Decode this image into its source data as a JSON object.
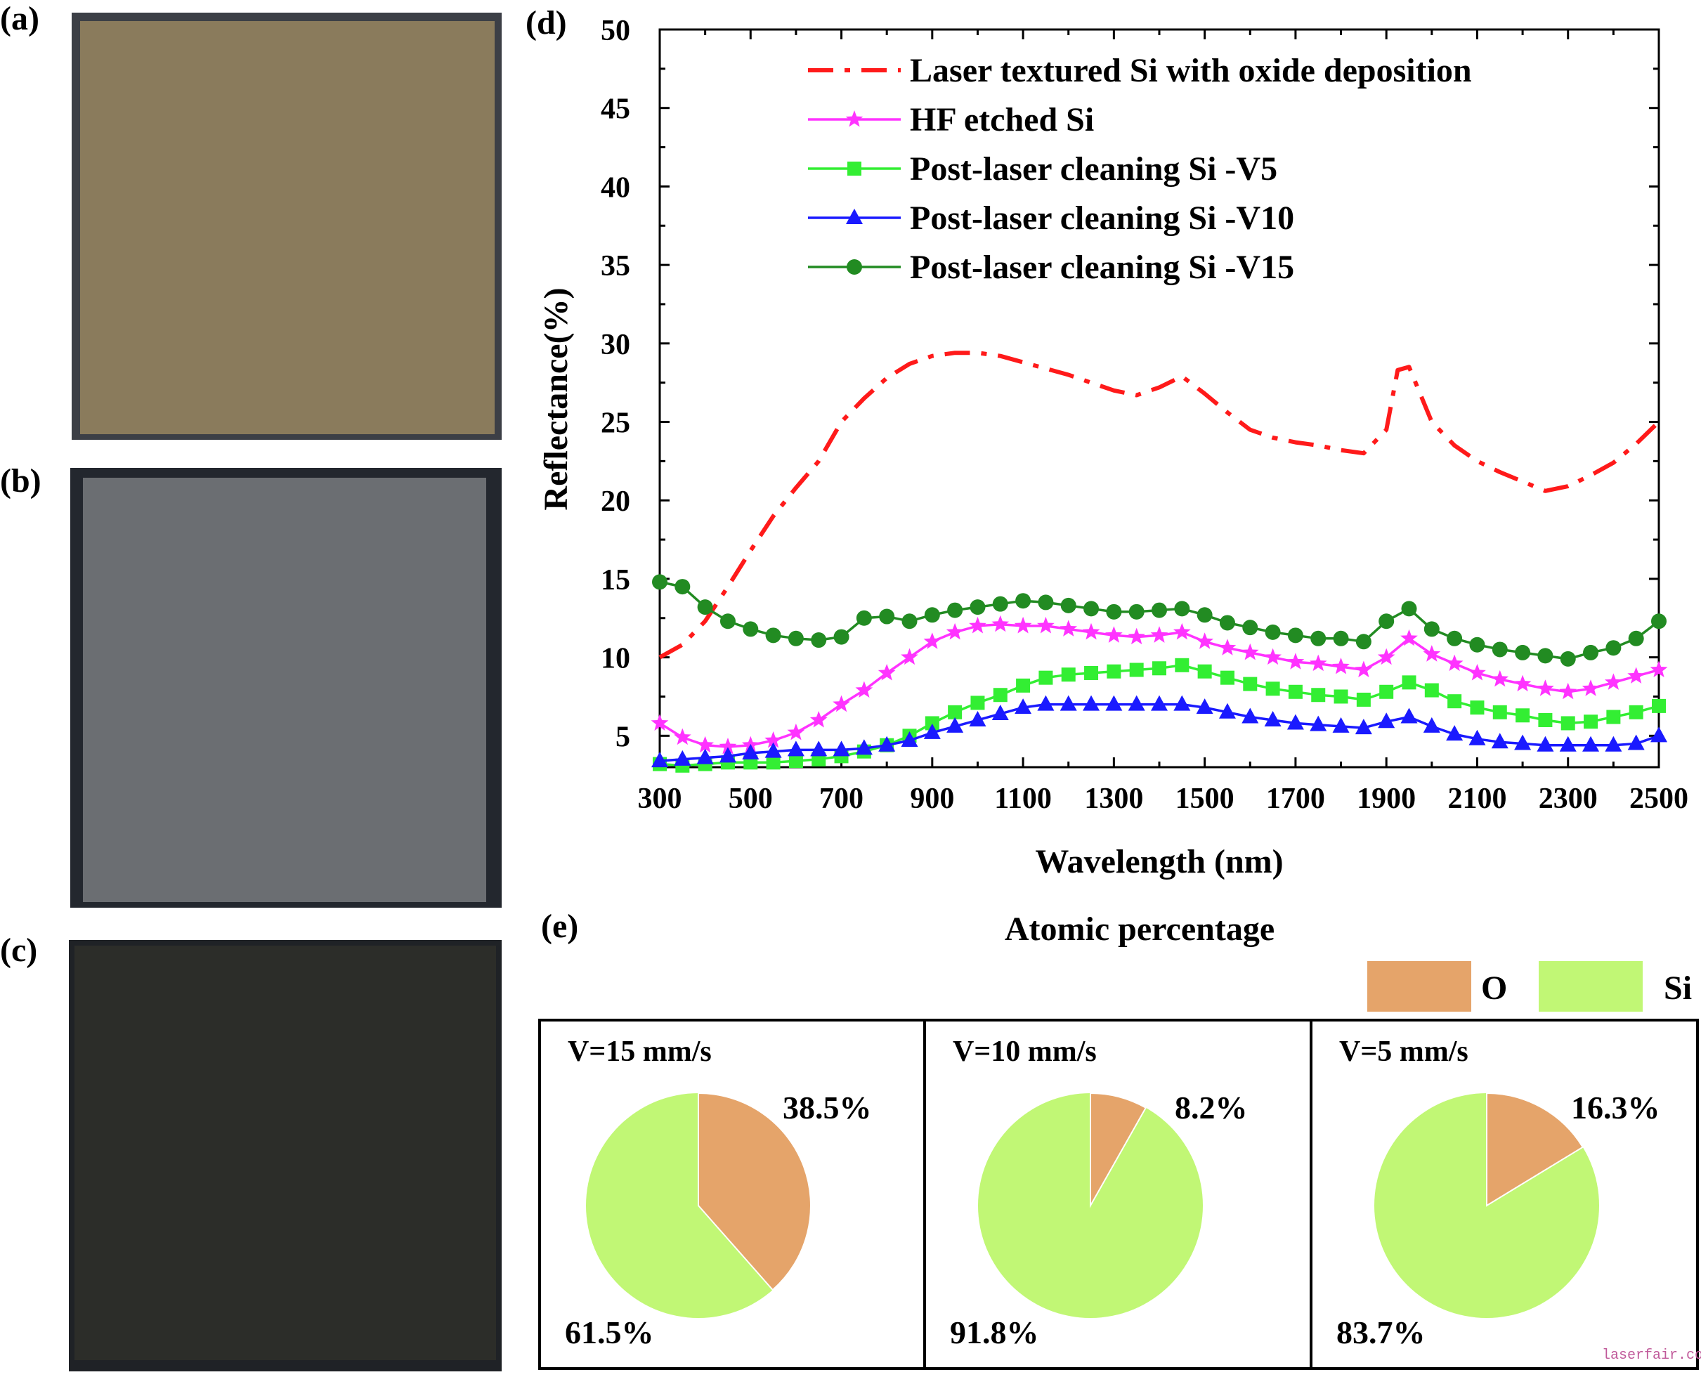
{
  "panels": {
    "a": "(a)",
    "b": "(b)",
    "c": "(c)",
    "d": "(d)",
    "e": "(e)"
  },
  "photo_colors": {
    "a": {
      "frame": "#3c3f46",
      "sample": "#8a7b5c"
    },
    "b": {
      "frame": "#23272e",
      "sample": "#6b6e72"
    },
    "c": {
      "frame": "#1f2226",
      "sample": "#2c2d29"
    }
  },
  "chart_data": [
    {
      "type": "line",
      "title": "",
      "xlabel": "Wavelength (nm)",
      "ylabel": "Reflectance(%)",
      "xlim": [
        300,
        2500
      ],
      "ylim": [
        3,
        50
      ],
      "xticks": [
        300,
        500,
        700,
        900,
        1100,
        1300,
        1500,
        1700,
        1900,
        2100,
        2300,
        2500
      ],
      "yticks": [
        5,
        10,
        15,
        20,
        25,
        30,
        35,
        40,
        45,
        50
      ],
      "legend_position": "top",
      "series": [
        {
          "name": "Laser textured Si with oxide deposition",
          "color": "#ff1a1a",
          "style": "dashdot",
          "marker": "none",
          "x": [
            300,
            350,
            400,
            450,
            500,
            550,
            600,
            650,
            700,
            750,
            800,
            850,
            900,
            950,
            1000,
            1050,
            1100,
            1150,
            1200,
            1250,
            1300,
            1350,
            1400,
            1450,
            1500,
            1550,
            1600,
            1650,
            1700,
            1750,
            1800,
            1850,
            1900,
            1925,
            1950,
            2000,
            2050,
            2100,
            2150,
            2200,
            2250,
            2300,
            2350,
            2400,
            2450,
            2500
          ],
          "y": [
            10.0,
            10.8,
            12.3,
            14.5,
            16.8,
            19.0,
            20.8,
            22.5,
            25.0,
            26.5,
            27.8,
            28.7,
            29.2,
            29.4,
            29.4,
            29.2,
            28.8,
            28.4,
            28.0,
            27.5,
            27.0,
            26.7,
            27.2,
            27.9,
            26.8,
            25.6,
            24.5,
            24.0,
            23.7,
            23.5,
            23.2,
            23.0,
            24.5,
            28.3,
            28.5,
            25.0,
            23.5,
            22.5,
            21.8,
            21.2,
            20.6,
            20.9,
            21.6,
            22.4,
            23.6,
            25.0
          ]
        },
        {
          "name": "HF etched Si",
          "color": "#ff33ff",
          "style": "solid",
          "marker": "star",
          "x": [
            300,
            350,
            400,
            450,
            500,
            550,
            600,
            650,
            700,
            750,
            800,
            850,
            900,
            950,
            1000,
            1050,
            1100,
            1150,
            1200,
            1250,
            1300,
            1350,
            1400,
            1450,
            1500,
            1550,
            1600,
            1650,
            1700,
            1750,
            1800,
            1850,
            1900,
            1950,
            2000,
            2050,
            2100,
            2150,
            2200,
            2250,
            2300,
            2350,
            2400,
            2450,
            2500
          ],
          "y": [
            5.8,
            4.9,
            4.4,
            4.3,
            4.4,
            4.7,
            5.2,
            6.0,
            7.0,
            7.9,
            9.0,
            10.0,
            11.0,
            11.6,
            12.0,
            12.1,
            12.0,
            12.0,
            11.8,
            11.6,
            11.4,
            11.3,
            11.4,
            11.6,
            11.0,
            10.6,
            10.3,
            10.0,
            9.7,
            9.6,
            9.4,
            9.2,
            10.0,
            11.2,
            10.2,
            9.6,
            9.0,
            8.6,
            8.3,
            8.0,
            7.8,
            8.0,
            8.4,
            8.8,
            9.2
          ]
        },
        {
          "name": "Post-laser cleaning Si -V5",
          "color": "#33ee33",
          "style": "solid",
          "marker": "square",
          "x": [
            300,
            350,
            400,
            450,
            500,
            550,
            600,
            650,
            700,
            750,
            800,
            850,
            900,
            950,
            1000,
            1050,
            1100,
            1150,
            1200,
            1250,
            1300,
            1350,
            1400,
            1450,
            1500,
            1550,
            1600,
            1650,
            1700,
            1750,
            1800,
            1850,
            1900,
            1950,
            2000,
            2050,
            2100,
            2150,
            2200,
            2250,
            2300,
            2350,
            2400,
            2450,
            2500
          ],
          "y": [
            3.2,
            3.1,
            3.2,
            3.3,
            3.3,
            3.3,
            3.4,
            3.5,
            3.7,
            4.0,
            4.4,
            5.0,
            5.8,
            6.5,
            7.1,
            7.6,
            8.2,
            8.7,
            8.9,
            9.0,
            9.1,
            9.2,
            9.3,
            9.5,
            9.1,
            8.7,
            8.3,
            8.0,
            7.8,
            7.6,
            7.5,
            7.3,
            7.8,
            8.4,
            7.9,
            7.2,
            6.8,
            6.5,
            6.3,
            6.0,
            5.8,
            5.9,
            6.2,
            6.5,
            6.9
          ]
        },
        {
          "name": "Post-laser cleaning Si -V10",
          "color": "#1a1aff",
          "style": "solid",
          "marker": "triangle",
          "x": [
            300,
            350,
            400,
            450,
            500,
            550,
            600,
            650,
            700,
            750,
            800,
            850,
            900,
            950,
            1000,
            1050,
            1100,
            1150,
            1200,
            1250,
            1300,
            1350,
            1400,
            1450,
            1500,
            1550,
            1600,
            1650,
            1700,
            1750,
            1800,
            1850,
            1900,
            1950,
            2000,
            2050,
            2100,
            2150,
            2200,
            2250,
            2300,
            2350,
            2400,
            2450,
            2500
          ],
          "y": [
            3.4,
            3.5,
            3.6,
            3.7,
            3.9,
            4.0,
            4.1,
            4.1,
            4.1,
            4.2,
            4.4,
            4.7,
            5.2,
            5.6,
            6.0,
            6.4,
            6.8,
            7.0,
            7.0,
            7.0,
            7.0,
            7.0,
            7.0,
            7.0,
            6.8,
            6.5,
            6.2,
            6.0,
            5.8,
            5.7,
            5.6,
            5.5,
            5.9,
            6.2,
            5.6,
            5.1,
            4.8,
            4.6,
            4.5,
            4.4,
            4.4,
            4.4,
            4.4,
            4.5,
            5.0
          ]
        },
        {
          "name": "Post-laser cleaning Si -V15",
          "color": "#228b22",
          "style": "solid",
          "marker": "circle",
          "x": [
            300,
            350,
            400,
            450,
            500,
            550,
            600,
            650,
            700,
            750,
            800,
            850,
            900,
            950,
            1000,
            1050,
            1100,
            1150,
            1200,
            1250,
            1300,
            1350,
            1400,
            1450,
            1500,
            1550,
            1600,
            1650,
            1700,
            1750,
            1800,
            1850,
            1900,
            1950,
            2000,
            2050,
            2100,
            2150,
            2200,
            2250,
            2300,
            2350,
            2400,
            2450,
            2500
          ],
          "y": [
            14.8,
            14.5,
            13.2,
            12.3,
            11.8,
            11.4,
            11.2,
            11.1,
            11.3,
            12.5,
            12.6,
            12.3,
            12.7,
            13.0,
            13.2,
            13.4,
            13.6,
            13.5,
            13.3,
            13.1,
            12.9,
            12.9,
            13.0,
            13.1,
            12.7,
            12.2,
            11.9,
            11.6,
            11.4,
            11.2,
            11.2,
            11.0,
            12.3,
            13.1,
            11.8,
            11.2,
            10.8,
            10.5,
            10.3,
            10.1,
            9.9,
            10.3,
            10.6,
            11.2,
            12.3
          ]
        }
      ]
    },
    {
      "type": "pie",
      "title": "Atomic percentage",
      "legend": [
        {
          "label": "O",
          "color": "#e5a46a"
        },
        {
          "label": "Si",
          "color": "#c1f775"
        }
      ],
      "pies": [
        {
          "label": "V=15 mm/s",
          "values": [
            38.5,
            61.5
          ],
          "labels": [
            "38.5%",
            "61.5%"
          ]
        },
        {
          "label": "V=10 mm/s",
          "values": [
            8.2,
            91.8
          ],
          "labels": [
            "8.2%",
            "91.8%"
          ]
        },
        {
          "label": "V=5 mm/s",
          "values": [
            16.3,
            83.7
          ],
          "labels": [
            "16.3%",
            "83.7%"
          ]
        }
      ]
    }
  ],
  "watermark": "laserfair.com"
}
